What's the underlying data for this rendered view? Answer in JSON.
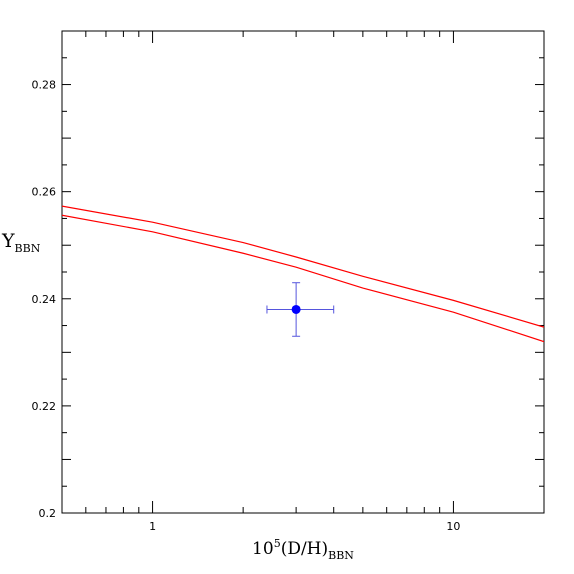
{
  "chart_data": {
    "type": "line",
    "x_scale": "log",
    "x_range": [
      0.5,
      20
    ],
    "y_range": [
      0.2,
      0.29
    ],
    "grid": false,
    "xlabel": {
      "main": "10",
      "sup": "5",
      "paren": "(D/H)",
      "sub": "BBN"
    },
    "ylabel": {
      "main": "Y",
      "sub": "BBN"
    },
    "x_tick_labels": [
      {
        "value": 1,
        "label": "1"
      },
      {
        "value": 10,
        "label": "10"
      }
    ],
    "y_tick_labels": [
      {
        "value": 0.2,
        "label": "0.2"
      },
      {
        "value": 0.22,
        "label": "0.22"
      },
      {
        "value": 0.24,
        "label": "0.24"
      },
      {
        "value": 0.26,
        "label": "0.26"
      },
      {
        "value": 0.28,
        "label": "0.28"
      }
    ],
    "series": [
      {
        "color": "#ff0000",
        "x": [
          0.5,
          1,
          2,
          3,
          5,
          10,
          20
        ],
        "y": [
          0.2573,
          0.2543,
          0.2505,
          0.2478,
          0.2442,
          0.2397,
          0.2347
        ]
      },
      {
        "color": "#ff0000",
        "x": [
          0.5,
          1,
          2,
          3,
          5,
          10,
          20
        ],
        "y": [
          0.2556,
          0.2525,
          0.2485,
          0.2459,
          0.242,
          0.2375,
          0.232
        ]
      }
    ],
    "points": [
      {
        "color": "#0000ff",
        "errorbar_color": "#5555dd",
        "x": 3.0,
        "y": 0.238,
        "x_err": [
          2.4,
          4.0
        ],
        "y_err": [
          0.233,
          0.243
        ]
      }
    ]
  }
}
